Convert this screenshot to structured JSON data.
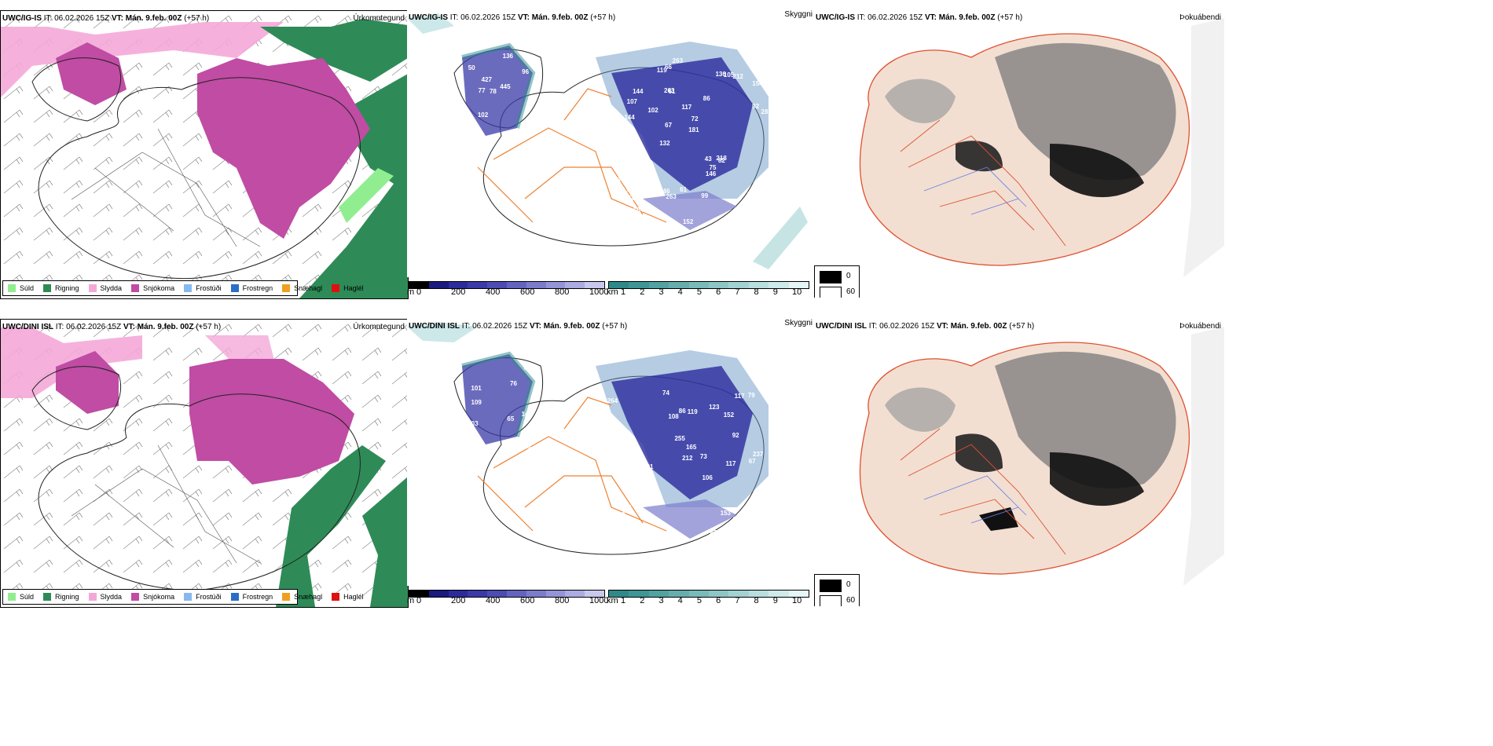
{
  "rows": [
    {
      "model": "UWC/IG-IS",
      "it_label": "IT:",
      "it_value": "06.02.2026 15Z",
      "vt_label": "VT:",
      "vt_value": "Mán. 9.feb. 00Z",
      "lead": "(+57 h)"
    },
    {
      "model": "UWC/DINI ISL",
      "it_label": "IT:",
      "it_value": "06.02.2026 15Z",
      "vt_label": "VT:",
      "vt_value": "Mán. 9.feb. 00Z",
      "lead": "(+57 h)"
    }
  ],
  "panel_titles": {
    "precip": "Úrkomutegund",
    "visibility": "Skyggni",
    "fog": "Þokuábendi"
  },
  "precip_legend": [
    {
      "label": "Súld",
      "color": "#90ee90"
    },
    {
      "label": "Rigning",
      "color": "#2e8b57"
    },
    {
      "label": "Slydda",
      "color": "#f4a8d8"
    },
    {
      "label": "Snjókoma",
      "color": "#c04ca4"
    },
    {
      "label": "Frostúði",
      "color": "#87b9f0"
    },
    {
      "label": "Frostregn",
      "color": "#2a6fc7"
    },
    {
      "label": "Snæhagl",
      "color": "#f0a020"
    },
    {
      "label": "Haglél",
      "color": "#e01010"
    }
  ],
  "height_bar": {
    "unit": "m",
    "ticks": [
      "0",
      "200",
      "400",
      "600",
      "800",
      "1000"
    ],
    "colors": [
      "#000000",
      "#1a1a80",
      "#2b2b9c",
      "#3a3aa8",
      "#4c4cb4",
      "#6464c0",
      "#7c7ccc",
      "#9494d8",
      "#acace2",
      "#c8c8ee"
    ]
  },
  "vis_bar": {
    "unit": "km",
    "ticks": [
      "1",
      "2",
      "3",
      "4",
      "5",
      "6",
      "7",
      "8",
      "9",
      "10"
    ],
    "colors": [
      "#2e8a8a",
      "#3f9696",
      "#52a2a2",
      "#66aeae",
      "#7ababa",
      "#8ec6c6",
      "#a2d2d2",
      "#b8dede",
      "#ceeaea",
      "#e6f5f5"
    ]
  },
  "cloud_legend": {
    "items": [
      {
        "label": "0",
        "color": "#000000"
      },
      {
        "label": "60",
        "color": "#ffffff"
      }
    ]
  },
  "terrain_labels_top": [
    "157",
    "69",
    "154",
    "132",
    "86",
    "122",
    "263",
    "117",
    "78",
    "102",
    "69",
    "56",
    "61",
    "72",
    "82",
    "50",
    "66",
    "77",
    "43",
    "92",
    "78",
    "46",
    "67",
    "144",
    "136",
    "102",
    "83",
    "86",
    "218",
    "152",
    "427",
    "144",
    "146",
    "104",
    "281",
    "445",
    "122",
    "263",
    "181",
    "111",
    "96",
    "148",
    "75",
    "99",
    "98",
    "110",
    "92",
    "61",
    "212",
    "263",
    "77",
    "102",
    "107",
    "105",
    "53",
    "136",
    "119"
  ],
  "terrain_labels_bottom": [
    "111",
    "55",
    "106",
    "264",
    "95",
    "101",
    "54",
    "81",
    "152",
    "86",
    "76",
    "42",
    "55",
    "74",
    "73",
    "103",
    "117",
    "165",
    "124",
    "103",
    "88",
    "119",
    "92",
    "80",
    "237",
    "109",
    "207",
    "212",
    "255",
    "79",
    "65",
    "70",
    "54",
    "123",
    "108",
    "144",
    "67",
    "153",
    "117",
    "82"
  ]
}
